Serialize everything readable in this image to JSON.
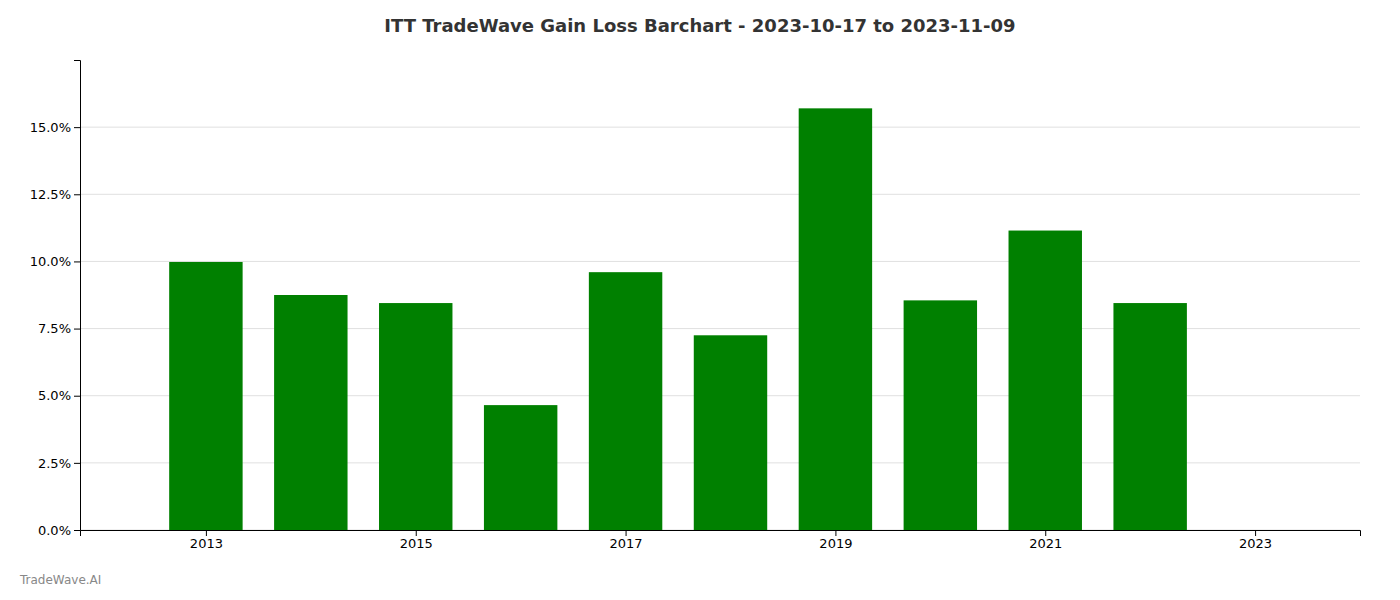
{
  "chart_data": {
    "type": "bar",
    "title": "ITT TradeWave Gain Loss Barchart - 2023-10-17 to 2023-11-09",
    "annotations": [
      "TradeWave.AI"
    ],
    "x": [
      2013,
      2014,
      2015,
      2016,
      2017,
      2018,
      2019,
      2020,
      2021,
      2022
    ],
    "values": [
      0.0998,
      0.0875,
      0.0845,
      0.0465,
      0.096,
      0.0725,
      0.157,
      0.0855,
      0.1115,
      0.0845
    ],
    "color": "#008000",
    "xlim": [
      2011.8,
      2024.0
    ],
    "xticks": [
      2013,
      2015,
      2017,
      2019,
      2021,
      2023
    ],
    "ylim": [
      0,
      0.175
    ],
    "yticks": [
      {
        "value": 0.0,
        "label": "0.0%"
      },
      {
        "value": 0.025,
        "label": "2.5%"
      },
      {
        "value": 0.05,
        "label": "5.0%"
      },
      {
        "value": 0.075,
        "label": "7.5%"
      },
      {
        "value": 0.1,
        "label": "10.0%"
      },
      {
        "value": 0.125,
        "label": "12.5%"
      },
      {
        "value": 0.15,
        "label": "15.0%"
      }
    ],
    "grid": true
  }
}
